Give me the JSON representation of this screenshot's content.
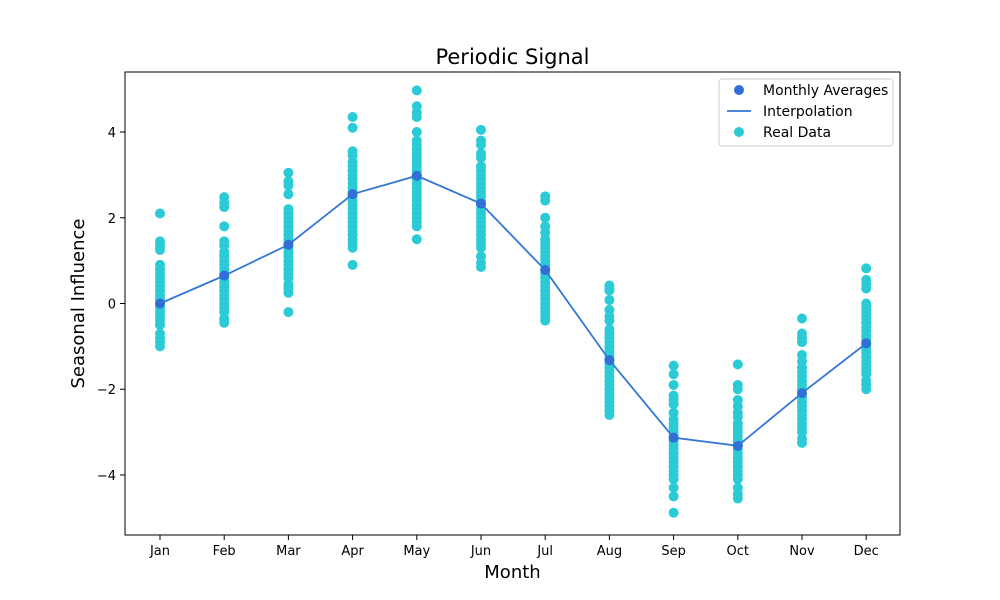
{
  "chart_data": {
    "type": "scatter",
    "title": "Periodic Signal",
    "xlabel": "Month",
    "ylabel": "Seasonal Influence",
    "categories": [
      "Jan",
      "Feb",
      "Mar",
      "Apr",
      "May",
      "Jun",
      "Jul",
      "Aug",
      "Sep",
      "Oct",
      "Nov",
      "Dec"
    ],
    "ylim": [
      -5.4,
      5.4
    ],
    "yticks": [
      -4,
      -2,
      0,
      2,
      4
    ],
    "grid": false,
    "legend_position": "top-right",
    "colors": {
      "averages": "#2f6fd6",
      "interpolation": "#3478d4",
      "real_data": "#2bcbd6"
    },
    "series": [
      {
        "name": "Monthly Averages",
        "kind": "points",
        "values": [
          0.0,
          0.65,
          1.37,
          2.55,
          2.98,
          2.33,
          0.78,
          -1.32,
          -3.13,
          -3.32,
          -2.09,
          -0.93
        ]
      },
      {
        "name": "Interpolation",
        "kind": "line",
        "values": [
          0.0,
          0.65,
          1.37,
          2.55,
          2.98,
          2.33,
          0.78,
          -1.32,
          -3.13,
          -3.32,
          -2.09,
          -0.93
        ]
      },
      {
        "name": "Real Data",
        "kind": "scatter",
        "groups": [
          [
            2.1,
            1.45,
            1.35,
            1.25,
            0.9,
            0.8,
            0.7,
            0.6,
            0.5,
            0.4,
            0.3,
            0.2,
            0.1,
            0.0,
            -0.1,
            -0.2,
            -0.3,
            -0.4,
            -0.5,
            -0.7,
            -0.8,
            -0.9,
            -1.0
          ],
          [
            2.48,
            2.35,
            2.25,
            1.8,
            1.45,
            1.35,
            1.2,
            1.1,
            1.0,
            0.9,
            0.8,
            0.7,
            0.6,
            0.5,
            0.4,
            0.3,
            0.2,
            0.1,
            0.0,
            -0.1,
            -0.2,
            -0.35,
            -0.45
          ],
          [
            3.05,
            2.85,
            2.75,
            2.55,
            2.2,
            2.1,
            2.0,
            1.9,
            1.8,
            1.7,
            1.6,
            1.5,
            1.4,
            1.3,
            1.2,
            1.1,
            1.0,
            0.9,
            0.8,
            0.7,
            0.6,
            0.45,
            0.35,
            0.25,
            -0.2
          ],
          [
            4.35,
            4.1,
            3.55,
            3.45,
            3.3,
            3.2,
            3.1,
            3.0,
            2.9,
            2.8,
            2.7,
            2.6,
            2.5,
            2.4,
            2.3,
            2.2,
            2.1,
            2.0,
            1.9,
            1.8,
            1.7,
            1.6,
            1.5,
            1.4,
            1.3,
            0.9
          ],
          [
            4.97,
            4.6,
            4.45,
            4.35,
            4.0,
            3.8,
            3.7,
            3.6,
            3.5,
            3.4,
            3.3,
            3.2,
            3.1,
            3.0,
            2.9,
            2.8,
            2.7,
            2.6,
            2.5,
            2.4,
            2.3,
            2.2,
            2.1,
            2.0,
            1.9,
            1.8,
            1.5
          ],
          [
            4.05,
            3.8,
            3.7,
            3.5,
            3.4,
            3.2,
            3.1,
            3.0,
            2.9,
            2.8,
            2.7,
            2.6,
            2.5,
            2.4,
            2.3,
            2.2,
            2.1,
            2.0,
            1.9,
            1.8,
            1.7,
            1.6,
            1.5,
            1.4,
            1.3,
            1.1,
            0.95,
            0.85
          ],
          [
            2.5,
            2.4,
            2.0,
            1.8,
            1.65,
            1.5,
            1.4,
            1.3,
            1.2,
            1.1,
            1.0,
            0.9,
            0.8,
            0.7,
            0.6,
            0.5,
            0.4,
            0.3,
            0.2,
            0.1,
            0.0,
            -0.1,
            -0.2,
            -0.3,
            -0.4
          ],
          [
            0.42,
            0.35,
            0.3,
            0.08,
            -0.15,
            -0.3,
            -0.4,
            -0.6,
            -0.7,
            -0.8,
            -0.9,
            -1.0,
            -1.1,
            -1.2,
            -1.3,
            -1.4,
            -1.5,
            -1.6,
            -1.7,
            -1.8,
            -1.9,
            -2.0,
            -2.1,
            -2.2,
            -2.3,
            -2.4,
            -2.5,
            -2.6
          ],
          [
            -1.45,
            -1.65,
            -1.9,
            -2.15,
            -2.25,
            -2.35,
            -2.55,
            -2.7,
            -2.8,
            -2.9,
            -3.0,
            -3.1,
            -3.2,
            -3.3,
            -3.4,
            -3.5,
            -3.6,
            -3.7,
            -3.8,
            -3.9,
            -4.0,
            -4.1,
            -4.3,
            -4.5,
            -4.88
          ],
          [
            -1.42,
            -1.9,
            -2.0,
            -2.25,
            -2.4,
            -2.55,
            -2.65,
            -2.8,
            -2.9,
            -3.0,
            -3.1,
            -3.2,
            -3.3,
            -3.4,
            -3.5,
            -3.6,
            -3.7,
            -3.8,
            -3.9,
            -4.0,
            -4.1,
            -4.3,
            -4.45,
            -4.55
          ],
          [
            -0.35,
            -0.7,
            -0.8,
            -0.9,
            -1.2,
            -1.35,
            -1.5,
            -1.6,
            -1.7,
            -1.8,
            -1.9,
            -2.0,
            -2.1,
            -2.2,
            -2.3,
            -2.4,
            -2.5,
            -2.6,
            -2.7,
            -2.8,
            -2.9,
            -3.0,
            -3.15,
            -3.25
          ],
          [
            0.82,
            0.55,
            0.45,
            0.35,
            0.0,
            -0.05,
            -0.15,
            -0.25,
            -0.35,
            -0.45,
            -0.55,
            -0.65,
            -0.75,
            -0.85,
            -0.95,
            -1.05,
            -1.15,
            -1.25,
            -1.35,
            -1.45,
            -1.55,
            -1.65,
            -1.8,
            -1.9,
            -2.0
          ]
        ]
      }
    ]
  }
}
